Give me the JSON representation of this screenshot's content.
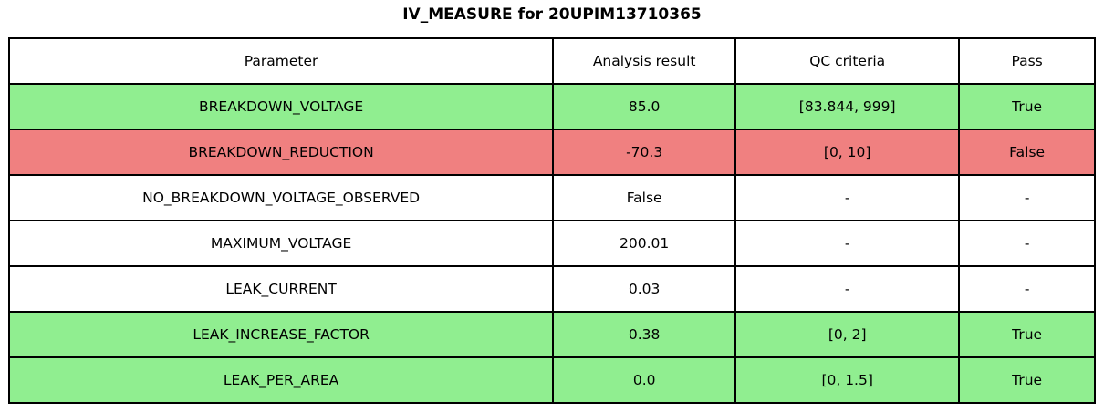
{
  "title": "IV_MEASURE for 20UPIM13710365",
  "colors": {
    "pass_bg": "#90ee90",
    "fail_bg": "#f08080",
    "neutral_bg": "#ffffff",
    "border": "#000000"
  },
  "table": {
    "columns": {
      "parameter": "Parameter",
      "result": "Analysis result",
      "criteria": "QC criteria",
      "pass": "Pass"
    },
    "rows": [
      {
        "parameter": "BREAKDOWN_VOLTAGE",
        "result": "85.0",
        "criteria": "[83.844, 999]",
        "pass": "True",
        "status": "pass"
      },
      {
        "parameter": "BREAKDOWN_REDUCTION",
        "result": "-70.3",
        "criteria": "[0, 10]",
        "pass": "False",
        "status": "fail"
      },
      {
        "parameter": "NO_BREAKDOWN_VOLTAGE_OBSERVED",
        "result": "False",
        "criteria": "-",
        "pass": "-",
        "status": "neutral"
      },
      {
        "parameter": "MAXIMUM_VOLTAGE",
        "result": "200.01",
        "criteria": "-",
        "pass": "-",
        "status": "neutral"
      },
      {
        "parameter": "LEAK_CURRENT",
        "result": "0.03",
        "criteria": "-",
        "pass": "-",
        "status": "neutral"
      },
      {
        "parameter": "LEAK_INCREASE_FACTOR",
        "result": "0.38",
        "criteria": "[0, 2]",
        "pass": "True",
        "status": "pass"
      },
      {
        "parameter": "LEAK_PER_AREA",
        "result": "0.0",
        "criteria": "[0, 1.5]",
        "pass": "True",
        "status": "pass"
      }
    ]
  }
}
